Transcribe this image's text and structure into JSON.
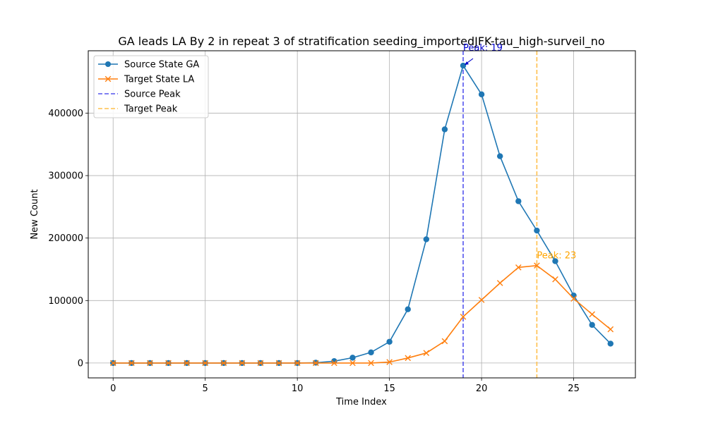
{
  "chart_data": {
    "type": "line",
    "title": "GA leads LA By 2 in repeat 3 of stratification seeding_importedJFK-tau_high-surveil_no",
    "xlabel": "Time Index",
    "ylabel": "New Count",
    "xlim": [
      -1.35,
      28.35
    ],
    "ylim": [
      -23800,
      499800
    ],
    "xticks": [
      0,
      5,
      10,
      15,
      20,
      25
    ],
    "yticks": [
      0,
      100000,
      200000,
      300000,
      400000
    ],
    "grid": true,
    "legend_position": "upper-left",
    "series": [
      {
        "name": "Source State GA",
        "color": "#1f77b4",
        "marker": "circle",
        "x": [
          0,
          1,
          2,
          3,
          4,
          5,
          6,
          7,
          8,
          9,
          10,
          11,
          12,
          13,
          14,
          15,
          16,
          17,
          18,
          19,
          20,
          21,
          22,
          23,
          24,
          25,
          26,
          27
        ],
        "values": [
          0,
          0,
          0,
          0,
          0,
          0,
          0,
          0,
          0,
          0,
          0,
          500,
          3000,
          8500,
          17000,
          34000,
          86000,
          198000,
          374000,
          476000,
          430000,
          331000,
          259000,
          212000,
          163000,
          108000,
          61000,
          31000
        ]
      },
      {
        "name": "Target State LA",
        "color": "#ff7f0e",
        "marker": "x",
        "x": [
          0,
          1,
          2,
          3,
          4,
          5,
          6,
          7,
          8,
          9,
          10,
          11,
          12,
          13,
          14,
          15,
          16,
          17,
          18,
          19,
          20,
          21,
          22,
          23,
          24,
          25,
          26,
          27
        ],
        "values": [
          0,
          0,
          0,
          0,
          0,
          0,
          0,
          0,
          0,
          0,
          0,
          0,
          0,
          0,
          0,
          1500,
          8000,
          16000,
          35000,
          74000,
          101000,
          128000,
          153000,
          156000,
          134000,
          103000,
          78000,
          54000
        ]
      }
    ],
    "vlines": [
      {
        "name": "Source Peak",
        "x": 19,
        "color": "#5555ee"
      },
      {
        "name": "Target Peak",
        "x": 23,
        "color": "#ffc04d"
      }
    ],
    "annotations": [
      {
        "text": "Peak: 19",
        "x": 19,
        "y": 476000,
        "color": "#0000cc"
      },
      {
        "text": "Peak: 23",
        "x": 23,
        "y": 156000,
        "color": "#ffa500"
      }
    ]
  }
}
